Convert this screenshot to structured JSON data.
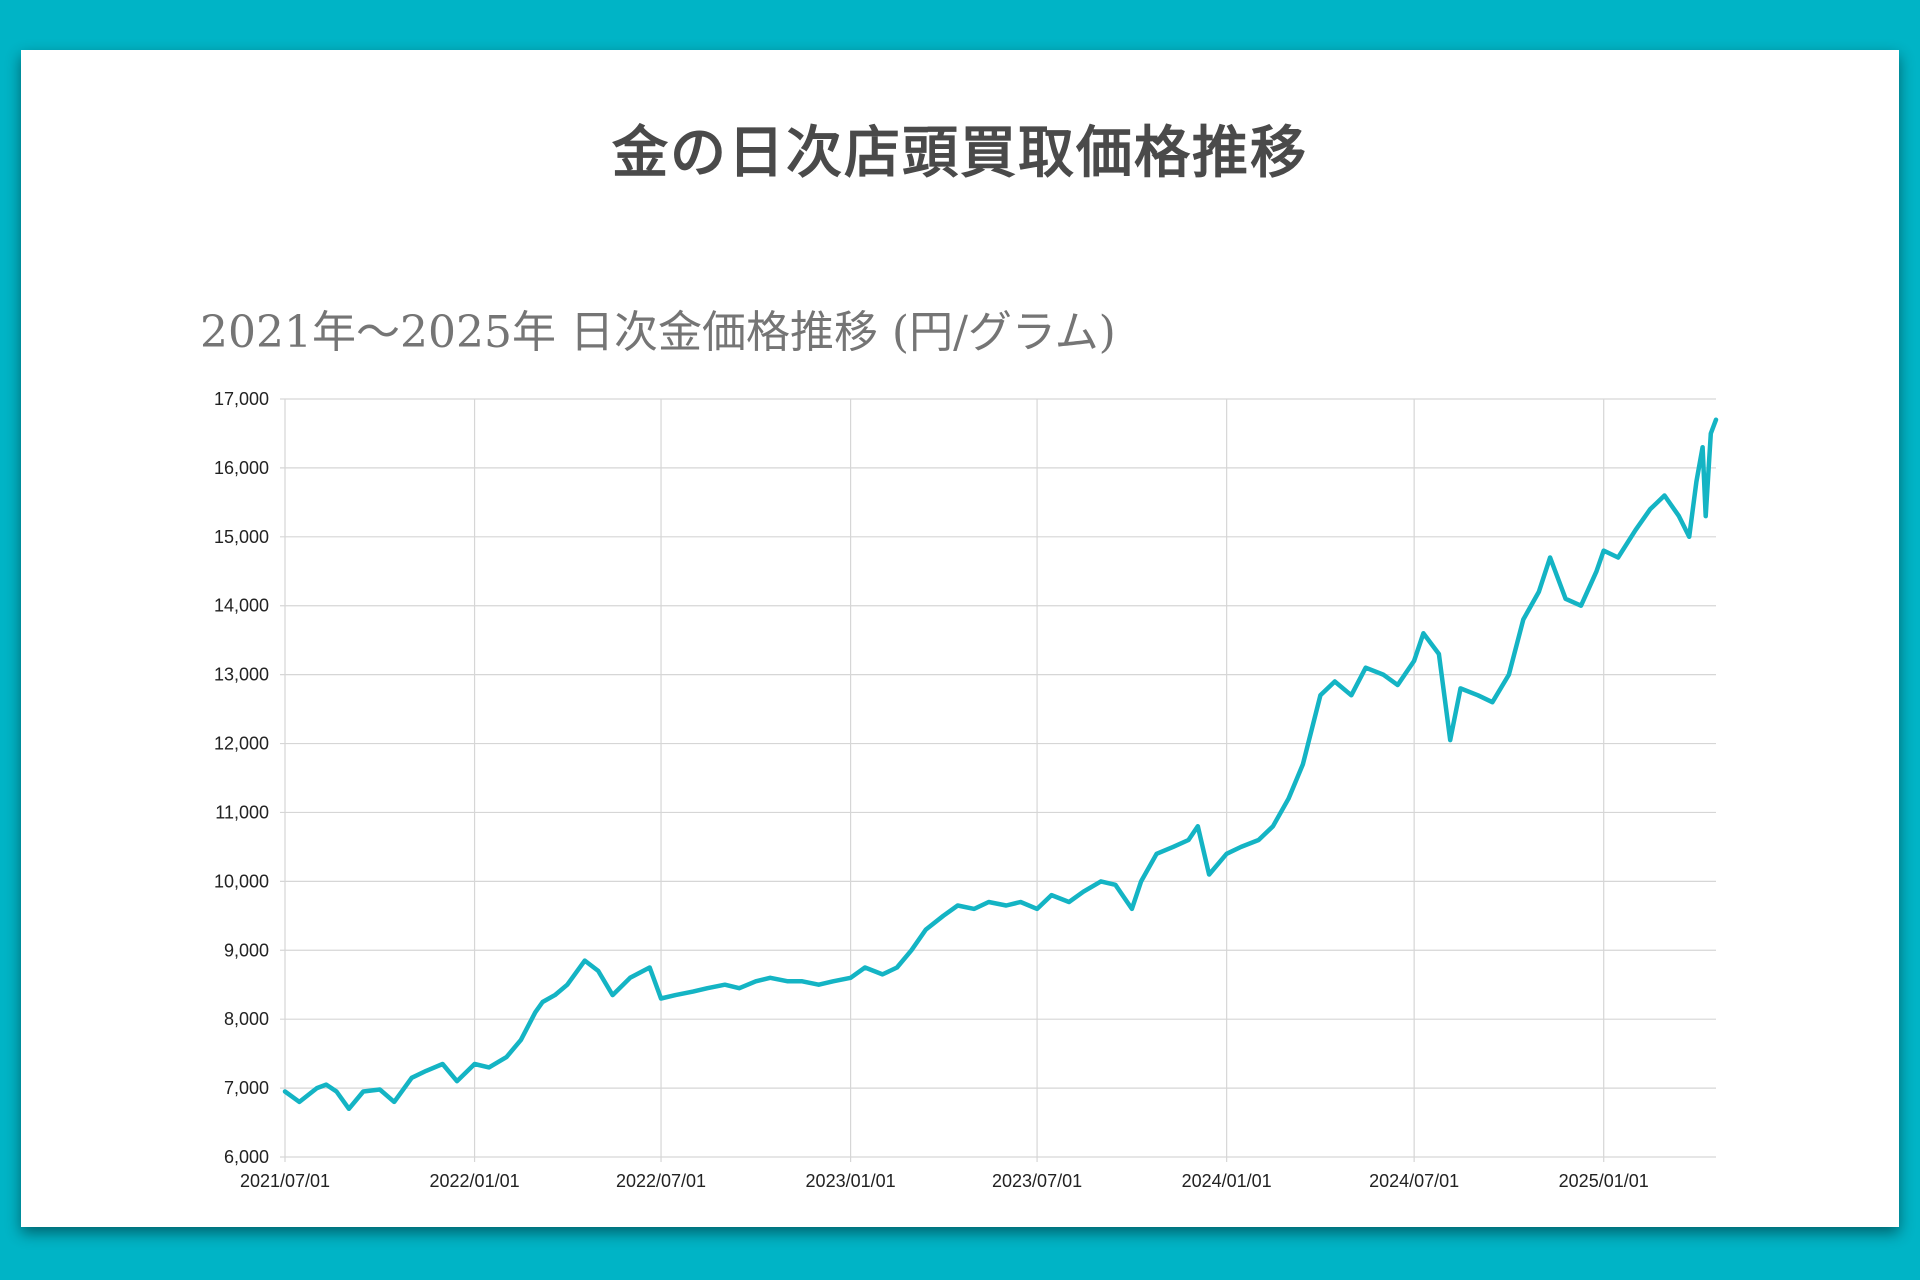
{
  "page": {
    "heading": "金の日次店頭買取価格推移",
    "background_color": "#00b4c6"
  },
  "chart_data": {
    "type": "line",
    "title": "2021年～2025年 日次金価格推移 (円/グラム)",
    "xlabel": "",
    "ylabel": "",
    "ylim": [
      6000,
      17000
    ],
    "xlim": [
      "2021-07-01",
      "2025-04-20"
    ],
    "y_ticks": [
      "6,000",
      "7,000",
      "8,000",
      "9,000",
      "10,000",
      "11,000",
      "12,000",
      "13,000",
      "14,000",
      "15,000",
      "16,000",
      "17,000"
    ],
    "x_ticks": [
      "2021/07/01",
      "2022/01/01",
      "2022/07/01",
      "2023/01/01",
      "2023/07/01",
      "2024/01/01",
      "2024/07/01",
      "2025/01/01"
    ],
    "grid": true,
    "legend": "none",
    "line_color": "#14b4c4",
    "series": [
      {
        "x": [
          "2021-07-01",
          "2021-07-15",
          "2021-08-01",
          "2021-08-10",
          "2021-08-20",
          "2021-09-01",
          "2021-09-15",
          "2021-10-01",
          "2021-10-15",
          "2021-11-01",
          "2021-11-15",
          "2021-12-01",
          "2021-12-15",
          "2022-01-01",
          "2022-01-15",
          "2022-02-01",
          "2022-02-15",
          "2022-03-01",
          "2022-03-08",
          "2022-03-20",
          "2022-04-01",
          "2022-04-18",
          "2022-05-01",
          "2022-05-15",
          "2022-06-01",
          "2022-06-20",
          "2022-07-01",
          "2022-07-15",
          "2022-08-01",
          "2022-08-15",
          "2022-09-01",
          "2022-09-15",
          "2022-10-01",
          "2022-10-15",
          "2022-11-01",
          "2022-11-15",
          "2022-12-01",
          "2022-12-15",
          "2023-01-01",
          "2023-01-15",
          "2023-02-01",
          "2023-02-15",
          "2023-03-01",
          "2023-03-15",
          "2023-04-01",
          "2023-04-15",
          "2023-05-01",
          "2023-05-15",
          "2023-06-01",
          "2023-06-15",
          "2023-07-01",
          "2023-07-15",
          "2023-08-01",
          "2023-08-15",
          "2023-09-01",
          "2023-09-15",
          "2023-10-01",
          "2023-10-10",
          "2023-10-25",
          "2023-11-10",
          "2023-11-25",
          "2023-12-04",
          "2023-12-15",
          "2024-01-01",
          "2024-01-15",
          "2024-02-01",
          "2024-02-15",
          "2024-03-01",
          "2024-03-15",
          "2024-04-01",
          "2024-04-15",
          "2024-05-01",
          "2024-05-15",
          "2024-06-01",
          "2024-06-15",
          "2024-07-01",
          "2024-07-10",
          "2024-07-25",
          "2024-08-05",
          "2024-08-15",
          "2024-09-01",
          "2024-09-15",
          "2024-10-01",
          "2024-10-15",
          "2024-10-30",
          "2024-11-10",
          "2024-11-25",
          "2024-12-10",
          "2024-12-25",
          "2025-01-01",
          "2025-01-15",
          "2025-02-01",
          "2025-02-15",
          "2025-03-01",
          "2025-03-15",
          "2025-03-25",
          "2025-04-01",
          "2025-04-07",
          "2025-04-10",
          "2025-04-15",
          "2025-04-20"
        ],
        "y": [
          6950,
          6800,
          7000,
          7050,
          6950,
          6700,
          6950,
          6980,
          6800,
          7150,
          7250,
          7350,
          7100,
          7350,
          7300,
          7450,
          7700,
          8100,
          8250,
          8350,
          8500,
          8850,
          8700,
          8350,
          8600,
          8750,
          8300,
          8350,
          8400,
          8450,
          8500,
          8450,
          8550,
          8600,
          8550,
          8550,
          8500,
          8550,
          8600,
          8750,
          8650,
          8750,
          9000,
          9300,
          9500,
          9650,
          9600,
          9700,
          9650,
          9700,
          9600,
          9800,
          9700,
          9850,
          10000,
          9950,
          9600,
          10000,
          10400,
          10500,
          10600,
          10800,
          10100,
          10400,
          10500,
          10600,
          10800,
          11200,
          11700,
          12700,
          12900,
          12700,
          13100,
          13000,
          12850,
          13200,
          13600,
          13300,
          12050,
          12800,
          12700,
          12600,
          13000,
          13800,
          14200,
          14700,
          14100,
          14000,
          14500,
          14800,
          14700,
          15100,
          15400,
          15600,
          15300,
          15000,
          15800,
          16300,
          15300,
          16500,
          16700
        ]
      }
    ]
  }
}
